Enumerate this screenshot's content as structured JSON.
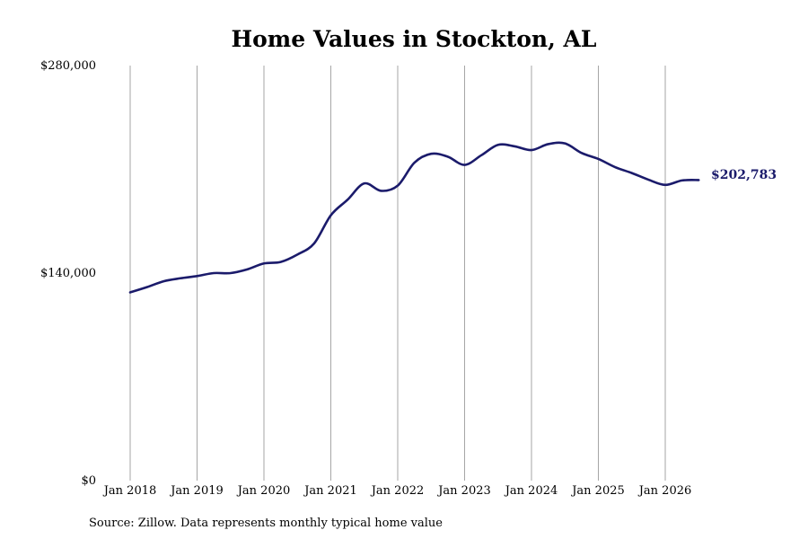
{
  "chart_data": {
    "type": "line",
    "title": "Home Values in Stockton, AL",
    "xlabel": "",
    "ylabel": "",
    "ylim": [
      0,
      280000
    ],
    "y_ticks": [
      "$280,000",
      "$140,000",
      "$0"
    ],
    "y_tick_values": [
      280000,
      140000,
      0
    ],
    "x_ticks": [
      "Jan 2018",
      "Jan 2019",
      "Jan 2020",
      "Jan 2021",
      "Jan 2022",
      "Jan 2023",
      "Jan 2024",
      "Jan 2025",
      "Jan 2026"
    ],
    "x_tick_values": [
      2018.0,
      2019.0,
      2020.0,
      2021.0,
      2022.0,
      2023.0,
      2024.0,
      2025.0,
      2026.0
    ],
    "xlim": [
      2018.0,
      2026.5
    ],
    "grid": "vertical",
    "series": [
      {
        "color": "#1b1b6b",
        "points": [
          [
            2018.0,
            127000
          ],
          [
            2018.25,
            130500
          ],
          [
            2018.5,
            134500
          ],
          [
            2018.75,
            136500
          ],
          [
            2019.0,
            138000
          ],
          [
            2019.25,
            140000
          ],
          [
            2019.5,
            140000
          ],
          [
            2019.75,
            142500
          ],
          [
            2020.0,
            146500
          ],
          [
            2020.25,
            147500
          ],
          [
            2020.5,
            152500
          ],
          [
            2020.75,
            160000
          ],
          [
            2021.0,
            179000
          ],
          [
            2021.25,
            189500
          ],
          [
            2021.5,
            200500
          ],
          [
            2021.75,
            195500
          ],
          [
            2022.0,
            199000
          ],
          [
            2022.25,
            214500
          ],
          [
            2022.5,
            220500
          ],
          [
            2022.75,
            218500
          ],
          [
            2023.0,
            213000
          ],
          [
            2023.25,
            219500
          ],
          [
            2023.5,
            226500
          ],
          [
            2023.75,
            225500
          ],
          [
            2024.0,
            223000
          ],
          [
            2024.25,
            227000
          ],
          [
            2024.5,
            227500
          ],
          [
            2024.75,
            221000
          ],
          [
            2025.0,
            217000
          ],
          [
            2025.25,
            211500
          ],
          [
            2025.5,
            207500
          ],
          [
            2025.75,
            203000
          ],
          [
            2026.0,
            199500
          ],
          [
            2026.25,
            202500
          ],
          [
            2026.5,
            202783
          ]
        ]
      }
    ],
    "end_label": "$202,783",
    "end_label_color": "#1b1b6b",
    "gridline_color": "#a6a6a6"
  },
  "source_note": "Source: Zillow. Data represents monthly typical home value"
}
